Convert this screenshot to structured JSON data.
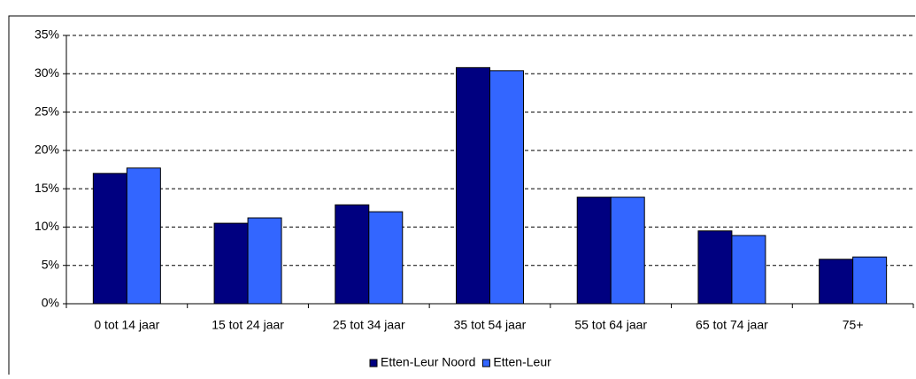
{
  "chart_data": {
    "type": "bar",
    "categories": [
      "0 tot 14 jaar",
      "15 tot 24 jaar",
      "25 tot 34 jaar",
      "35 tot 54 jaar",
      "55 tot 64 jaar",
      "65 tot 74 jaar",
      "75+"
    ],
    "series": [
      {
        "name": "Etten-Leur Noord",
        "color": "#000080",
        "values": [
          17.0,
          10.5,
          12.9,
          30.8,
          13.9,
          9.5,
          5.8
        ]
      },
      {
        "name": "Etten-Leur",
        "color": "#3366ff",
        "values": [
          17.7,
          11.2,
          12.0,
          30.4,
          13.9,
          8.9,
          6.1
        ]
      }
    ],
    "ylim": [
      0,
      35
    ],
    "yticks": [
      {
        "value": 0,
        "label": "0%"
      },
      {
        "value": 5,
        "label": "5%"
      },
      {
        "value": 10,
        "label": "10%"
      },
      {
        "value": 15,
        "label": "15%"
      },
      {
        "value": 20,
        "label": "20%"
      },
      {
        "value": 25,
        "label": "25%"
      },
      {
        "value": 30,
        "label": "30%"
      },
      {
        "value": 35,
        "label": "35%"
      }
    ],
    "grid": true,
    "legend": "bottom"
  }
}
